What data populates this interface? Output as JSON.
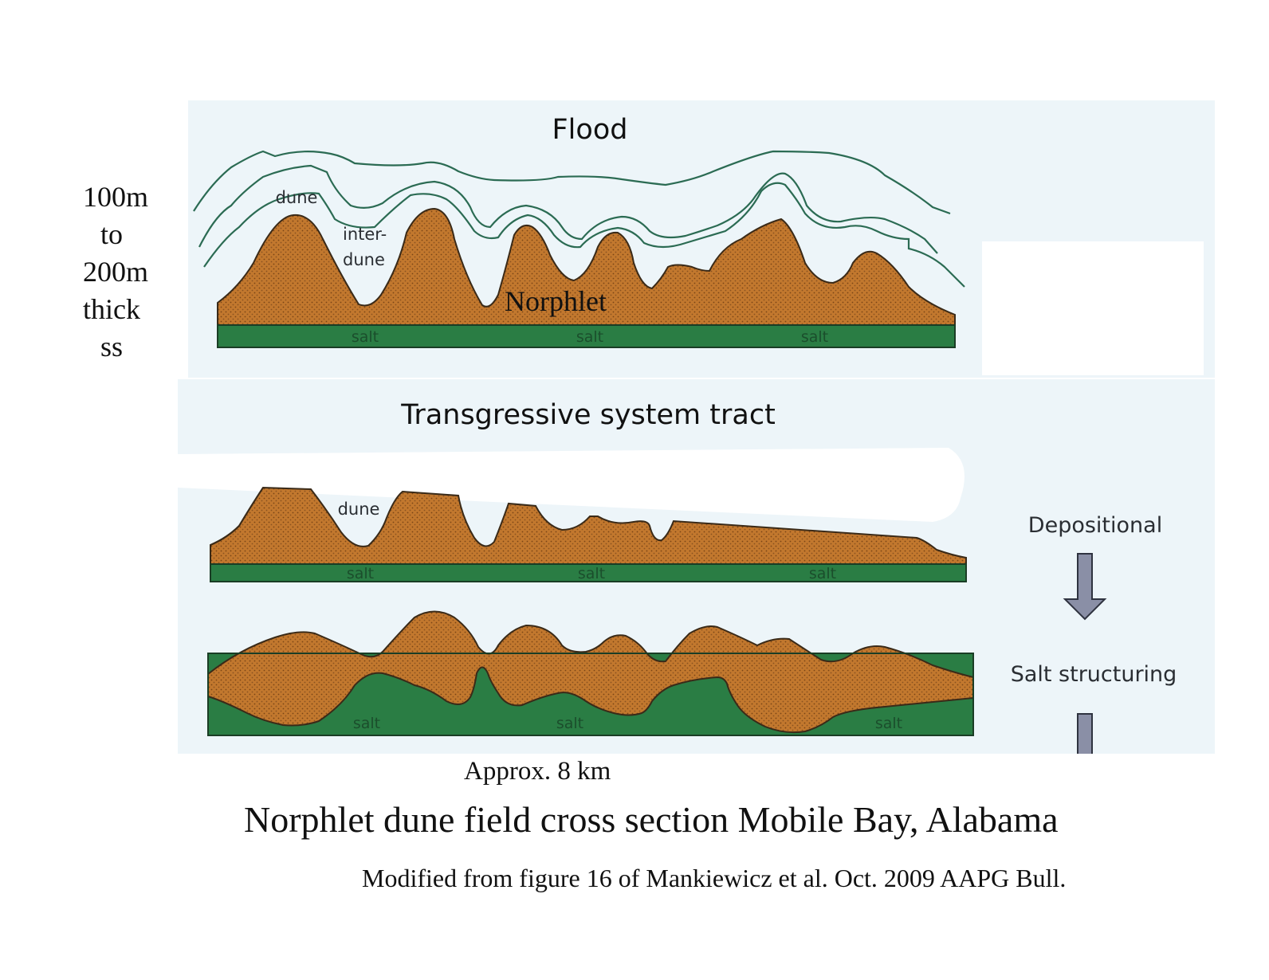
{
  "thickness_label": {
    "line1": "100m",
    "line2": "to",
    "line3": "200m",
    "line4": "thick",
    "line5": "ss"
  },
  "panels": {
    "flood_title": "Flood",
    "dune": "dune",
    "interdune_line1": "inter-",
    "interdune_line2": "dune",
    "norphlet": "Norphlet",
    "salt": "salt",
    "transgressive_title": "Transgressive system tract",
    "lower_dune": "dune"
  },
  "sequence": {
    "depositional": "Depositional",
    "salt_structuring": "Salt structuring"
  },
  "scale_label": "Approx. 8 km",
  "title": "Norphlet dune field cross section Mobile Bay, Alabama",
  "source": "Modified from figure 16 of Mankiewicz et al. Oct. 2009 AAPG Bull.",
  "colors": {
    "panel_bg": "#edf5f9",
    "sand": "#c2782e",
    "salt": "#2a7d44",
    "flood_line": "#2b6b53",
    "arrow": "#8a8fa6",
    "label_text": "#2a2e33"
  }
}
